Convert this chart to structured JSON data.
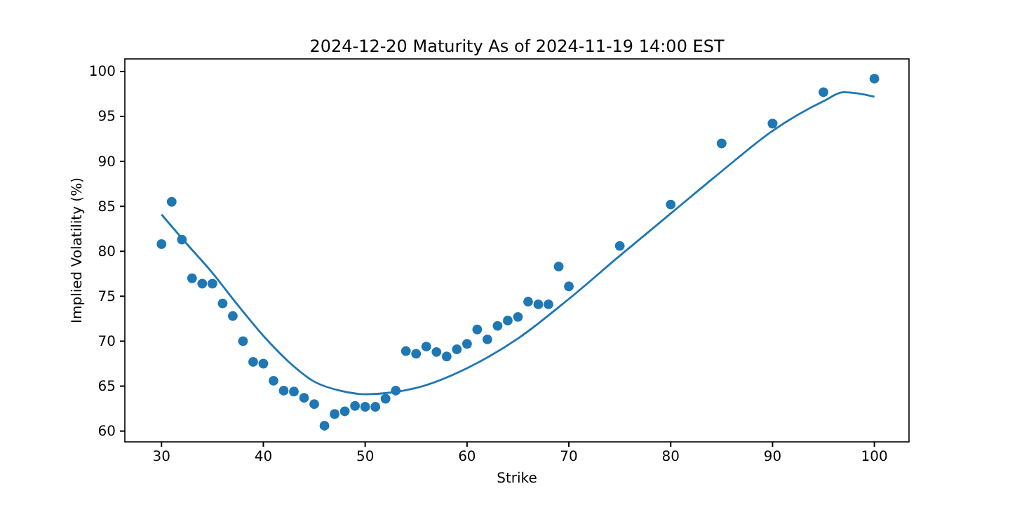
{
  "chart_data": {
    "type": "scatter",
    "title": "2024-12-20 Maturity As of 2024-11-19 14:00 EST",
    "xlabel": "Strike",
    "ylabel": "Implied Volatility (%)",
    "xlim": [
      26.4,
      103.4
    ],
    "xticks": [
      30,
      40,
      50,
      60,
      70,
      80,
      90,
      100
    ],
    "ylim": [
      58.8,
      101.4
    ],
    "yticks": [
      60,
      65,
      70,
      75,
      80,
      85,
      90,
      95,
      100
    ],
    "grid": false,
    "series": [
      {
        "marker": "circle",
        "color": "#1f77b4",
        "x": [
          30,
          31,
          32,
          33,
          34,
          35,
          36,
          37,
          38,
          39,
          40,
          41,
          42,
          43,
          44,
          45,
          46,
          47,
          48,
          49,
          50,
          51,
          52,
          53,
          54,
          55,
          56,
          57,
          58,
          59,
          60,
          61,
          62,
          63,
          64,
          65,
          66,
          67,
          68,
          69,
          70,
          75,
          80,
          85,
          90,
          95,
          100
        ],
        "values": [
          80.8,
          85.5,
          81.3,
          77.0,
          76.4,
          76.4,
          74.2,
          72.8,
          70.0,
          67.7,
          67.5,
          65.6,
          64.5,
          64.4,
          63.7,
          63.0,
          60.6,
          61.9,
          62.2,
          62.8,
          62.7,
          62.7,
          63.6,
          64.5,
          68.9,
          68.6,
          69.4,
          68.8,
          68.3,
          69.1,
          69.7,
          71.3,
          70.2,
          71.7,
          72.3,
          72.7,
          74.4,
          74.1,
          74.1,
          78.3,
          76.1,
          80.6,
          85.2,
          92.0,
          94.2,
          97.7,
          99.2
        ]
      },
      {
        "type": "line",
        "color": "#1f77b4",
        "x": [
          30,
          32.5,
          35,
          37.5,
          40,
          42.5,
          45,
          47.5,
          50,
          55,
          60,
          65,
          70,
          75,
          80,
          85,
          90,
          95,
          97,
          100
        ],
        "values": [
          84.1,
          80.8,
          77.6,
          74.0,
          70.6,
          67.7,
          65.5,
          64.5,
          64.1,
          64.8,
          67.0,
          70.3,
          74.7,
          79.5,
          84.2,
          88.9,
          93.4,
          96.7,
          97.7,
          97.2
        ]
      }
    ]
  }
}
